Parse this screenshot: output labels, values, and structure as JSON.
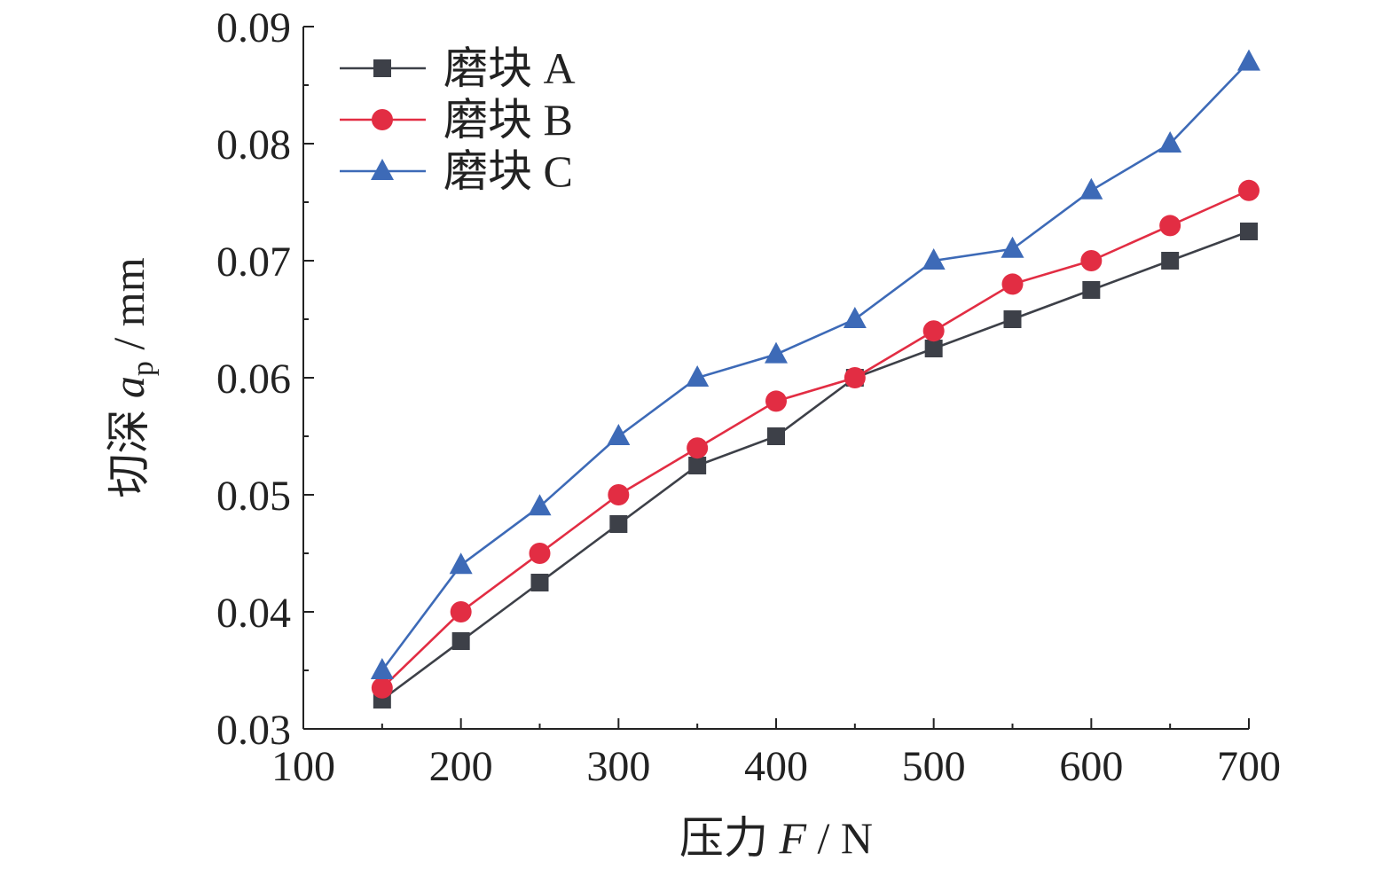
{
  "chart_data": {
    "type": "line",
    "xlabel_parts": {
      "pre": "压力 ",
      "var": "F",
      "post": " / N"
    },
    "ylabel_parts": {
      "pre": "切深 ",
      "var": "a",
      "sub": "p",
      "post": " / mm"
    },
    "xlim": [
      100,
      700
    ],
    "ylim": [
      0.03,
      0.09
    ],
    "x_ticks": [
      100,
      200,
      300,
      400,
      500,
      600,
      700
    ],
    "x_tick_labels": [
      "100",
      "200",
      "300",
      "400",
      "500",
      "600",
      "700"
    ],
    "y_ticks": [
      0.03,
      0.04,
      0.05,
      0.06,
      0.07,
      0.08,
      0.09
    ],
    "y_tick_labels": [
      "0.03",
      "0.04",
      "0.05",
      "0.06",
      "0.07",
      "0.08",
      "0.09"
    ],
    "grid": false,
    "legend_position": "top-left",
    "x": [
      150,
      200,
      250,
      300,
      350,
      400,
      450,
      500,
      550,
      600,
      650,
      700
    ],
    "series": [
      {
        "name": "磨块 A",
        "marker": "square",
        "color": "#3d4048",
        "values": [
          0.0325,
          0.0375,
          0.0425,
          0.0475,
          0.0525,
          0.055,
          0.06,
          0.0625,
          0.065,
          0.0675,
          0.07,
          0.0725
        ]
      },
      {
        "name": "磨块 B",
        "marker": "circle",
        "color": "#e22d43",
        "values": [
          0.0335,
          0.04,
          0.045,
          0.05,
          0.054,
          0.058,
          0.06,
          0.064,
          0.068,
          0.07,
          0.073,
          0.076
        ]
      },
      {
        "name": "磨块 C",
        "marker": "triangle",
        "color": "#3d6ab7",
        "values": [
          0.035,
          0.044,
          0.049,
          0.055,
          0.06,
          0.062,
          0.065,
          0.07,
          0.071,
          0.076,
          0.08,
          0.087
        ]
      }
    ]
  }
}
